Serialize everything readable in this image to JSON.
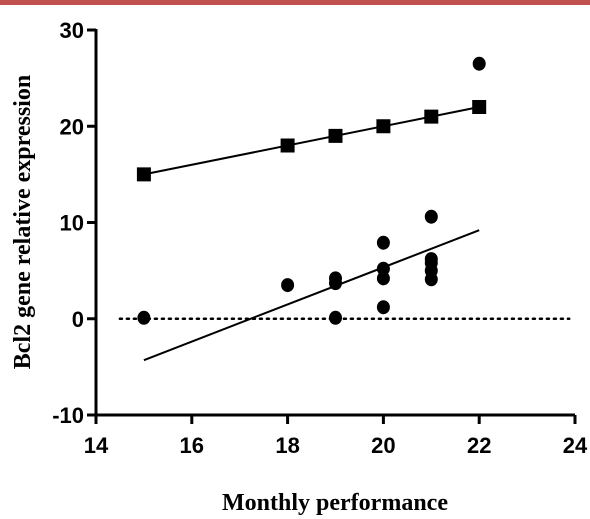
{
  "colors": {
    "top_rule": "#c0504d",
    "ink": "#000000"
  },
  "chart_data": {
    "type": "scatter",
    "title": "",
    "xlabel": "Monthly performance",
    "ylabel": "Bcl2 gene relative expression",
    "xlim": [
      14,
      24
    ],
    "ylim": [
      -10,
      30
    ],
    "x_ticks": [
      14,
      16,
      18,
      20,
      22,
      24
    ],
    "y_ticks": [
      -10,
      0,
      10,
      20,
      30
    ],
    "grid": false,
    "legend": "none",
    "reference_line": {
      "y": 0,
      "style": "dotted",
      "x_range": [
        15,
        22
      ]
    },
    "series": [
      {
        "marker": "square",
        "points": [
          [
            15,
            15
          ],
          [
            18,
            18
          ],
          [
            19,
            19
          ],
          [
            20,
            20
          ],
          [
            21,
            21
          ],
          [
            22,
            22
          ]
        ],
        "fit": {
          "x": [
            15,
            22
          ],
          "y": [
            15,
            22
          ]
        }
      },
      {
        "marker": "circle",
        "points": [
          [
            15,
            0.1
          ],
          [
            18,
            3.5
          ],
          [
            19,
            0.1
          ],
          [
            19,
            3.7
          ],
          [
            19,
            4.2
          ],
          [
            20,
            1.2
          ],
          [
            20,
            4.2
          ],
          [
            20,
            5.2
          ],
          [
            20,
            7.9
          ],
          [
            21,
            4.1
          ],
          [
            21,
            5.0
          ],
          [
            21,
            5.8
          ],
          [
            21,
            6.2
          ],
          [
            21,
            10.6
          ],
          [
            22,
            26.5
          ]
        ],
        "fit": {
          "x": [
            15,
            22
          ],
          "y": [
            -4.3,
            9.2
          ]
        }
      }
    ]
  }
}
